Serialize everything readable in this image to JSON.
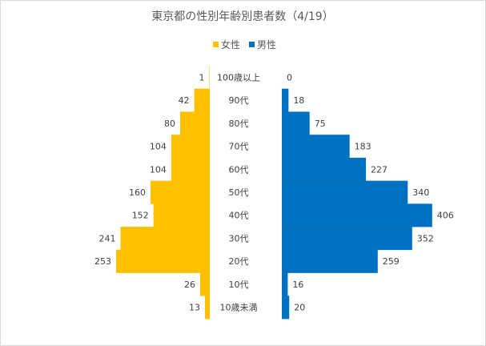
{
  "chart_data": {
    "type": "bar",
    "orientation": "horizontal",
    "layout": "population-pyramid",
    "title": "東京都の性別年齢別患者数（4/19）",
    "categories": [
      "100歳以上",
      "90代",
      "80代",
      "70代",
      "60代",
      "50代",
      "40代",
      "30代",
      "20代",
      "10代",
      "10歳未満"
    ],
    "series": [
      {
        "name": "女性",
        "color": "#FFC000",
        "values": [
          1,
          42,
          80,
          104,
          104,
          160,
          152,
          241,
          253,
          26,
          13
        ]
      },
      {
        "name": "男性",
        "color": "#0070C0",
        "values": [
          0,
          18,
          75,
          183,
          227,
          340,
          406,
          352,
          259,
          16,
          20
        ]
      }
    ],
    "legend_position": "top",
    "grid": false
  }
}
